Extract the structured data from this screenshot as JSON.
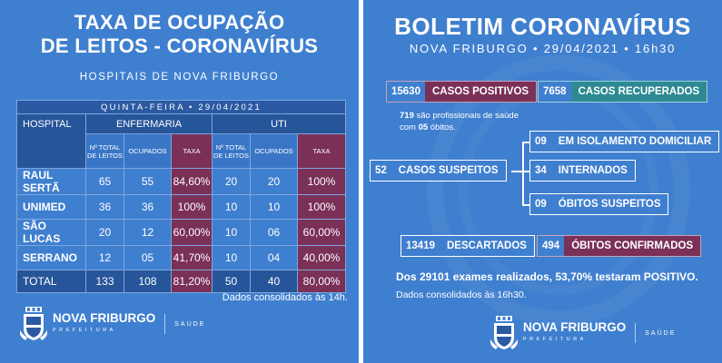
{
  "left": {
    "title_line1": "TAXA DE OCUPAÇÃO",
    "title_line2": "DE LEITOS - CORONAVÍRUS",
    "subtitle": "HOSPITAIS DE NOVA FRIBURGO",
    "date_row": "QUINTA-FEIRA • 29/04/2021",
    "headers": {
      "hospital": "HOSPITAL",
      "enfermaria": "ENFERMARIA",
      "uti": "UTI"
    },
    "subheaders": {
      "total": "Nº TOTAL DE LEITOS",
      "ocupados": "OCUPADOS",
      "taxa": "TAXA"
    },
    "rows": [
      {
        "name": "RAUL SERTÃ",
        "enf_total": "65",
        "enf_ocup": "55",
        "enf_taxa": "84,60%",
        "uti_total": "20",
        "uti_ocup": "20",
        "uti_taxa": "100%"
      },
      {
        "name": "UNIMED",
        "enf_total": "36",
        "enf_ocup": "36",
        "enf_taxa": "100%",
        "uti_total": "10",
        "uti_ocup": "10",
        "uti_taxa": "100%"
      },
      {
        "name": "SÃO LUCAS",
        "enf_total": "20",
        "enf_ocup": "12",
        "enf_taxa": "60,00%",
        "uti_total": "10",
        "uti_ocup": "06",
        "uti_taxa": "60,00%"
      },
      {
        "name": "SERRANO",
        "enf_total": "12",
        "enf_ocup": "05",
        "enf_taxa": "41,70%",
        "uti_total": "10",
        "uti_ocup": "04",
        "uti_taxa": "40,00%"
      }
    ],
    "total": {
      "name": "TOTAL",
      "enf_total": "133",
      "enf_ocup": "108",
      "enf_taxa": "81,20%",
      "uti_total": "50",
      "uti_ocup": "40",
      "uti_taxa": "80,00%"
    },
    "note": "Dados consolidados às 14h."
  },
  "logo": {
    "line1": "NOVA FRIBURGO",
    "line2": "PREFEITURA",
    "saude": "SAÚDE"
  },
  "right": {
    "title": "BOLETIM CORONAVÍRUS",
    "subtitle": "NOVA FRIBURGO • 29/04/2021 • 16h30",
    "casos_positivos": {
      "num": "15630",
      "label": "CASOS POSITIVOS"
    },
    "casos_recuperados": {
      "num": "7658",
      "label": "CASOS RECUPERADOS"
    },
    "prof_num": "719",
    "prof_text1": " são profissionais de saúde",
    "prof_text2a": "com ",
    "prof_num2": "05",
    "prof_text2b": " óbitos.",
    "casos_suspeitos": {
      "num": "52",
      "label": "CASOS SUSPEITOS"
    },
    "isolamento": {
      "num": "09",
      "label": "EM ISOLAMENTO DOMICILIAR"
    },
    "internados": {
      "num": "34",
      "label": "INTERNADOS"
    },
    "obitos_suspeitos": {
      "num": "09",
      "label": "ÓBITOS SUSPEITOS"
    },
    "descartados": {
      "num": "13419",
      "label": "DESCARTADOS"
    },
    "obitos_confirmados": {
      "num": "494",
      "label": "ÓBITOS CONFIRMADOS"
    },
    "exames": "Dos 29101 exames realizados, 53,70% testaram POSITIVO.",
    "note": "Dados consolidados às 16h30."
  },
  "colors": {
    "background": "#3f7fcf",
    "maroon": "#7a3057",
    "teal": "#2d8a92",
    "dark_blue": "#27559a"
  }
}
